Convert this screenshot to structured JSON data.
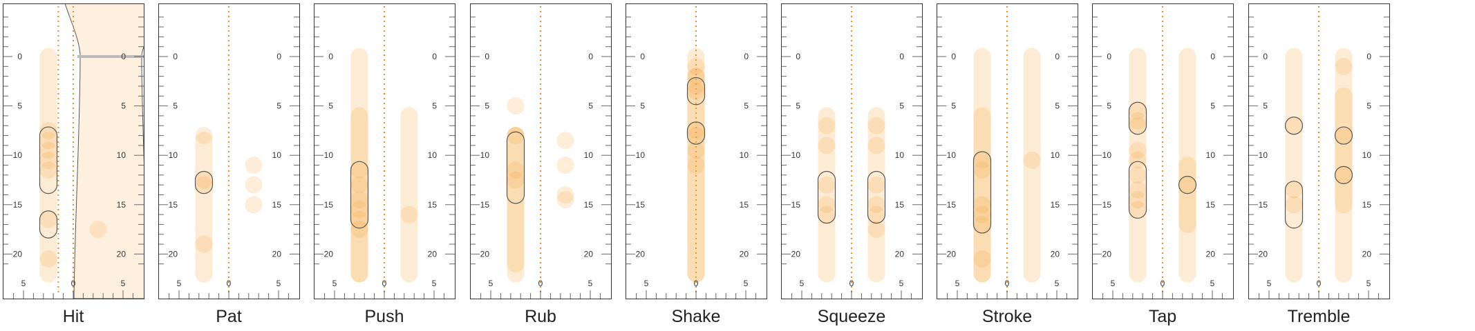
{
  "chart_data": {
    "type": "scatter",
    "title": "",
    "y_ticks": [
      "0",
      "5",
      "10",
      "15",
      "20"
    ],
    "ylim": [
      -5.5,
      24.5
    ],
    "x_ticks": [
      "5",
      "0",
      "5"
    ],
    "xlim": [
      -6.5,
      6.5
    ],
    "reference_line_x": 0,
    "colors": {
      "fill": "#f5a742",
      "guide": "#ee8a2a",
      "outline": "#555555",
      "ruler": "#666666"
    },
    "panels": [
      {
        "name": "Hit",
        "bars": [
          {
            "x": -2.5,
            "y": [
              0,
              22
            ]
          }
        ],
        "dots": [
          {
            "x": -2.5,
            "y": 7.5
          },
          {
            "x": -2.5,
            "y": 8.5
          },
          {
            "x": -2.5,
            "y": 9.5
          },
          {
            "x": -2.5,
            "y": 10.5
          },
          {
            "x": -2.5,
            "y": 11.5
          },
          {
            "x": -2.5,
            "y": 16.5
          },
          {
            "x": -2.5,
            "y": 20.5
          },
          {
            "x": 2.5,
            "y": 17.5
          }
        ],
        "outlines": [
          {
            "x": -2.5,
            "y": [
              8,
              13
            ]
          },
          {
            "x": -2.5,
            "y": [
              16.5,
              17.5
            ]
          }
        ],
        "silhouette": true
      },
      {
        "name": "Pat",
        "bars": [
          {
            "x": -2.5,
            "y": [
              8.5,
              22
            ]
          }
        ],
        "dots": [
          {
            "x": -2.5,
            "y": 8
          },
          {
            "x": -2.5,
            "y": 12.5
          },
          {
            "x": -2.5,
            "y": 13
          },
          {
            "x": -2.5,
            "y": 19
          },
          {
            "x": 2.5,
            "y": 11
          },
          {
            "x": 2.5,
            "y": 13
          },
          {
            "x": 2.5,
            "y": 15
          }
        ],
        "outlines": [
          {
            "x": -2.5,
            "y": [
              12.5,
              13
            ]
          }
        ]
      },
      {
        "name": "Push",
        "bars": [
          {
            "x": -2.5,
            "y": [
              0,
              22
            ]
          },
          {
            "x": -2.5,
            "y": [
              6,
              22
            ]
          },
          {
            "x": 2.5,
            "y": [
              6,
              22
            ]
          }
        ],
        "dots": [
          {
            "x": -2.5,
            "y": 11.5
          },
          {
            "x": -2.5,
            "y": 13
          },
          {
            "x": -2.5,
            "y": 14.5
          },
          {
            "x": -2.5,
            "y": 15.5
          },
          {
            "x": -2.5,
            "y": 16.5
          },
          {
            "x": -2.5,
            "y": 17.5
          },
          {
            "x": 2.5,
            "y": 16
          }
        ],
        "outlines": [
          {
            "x": -2.5,
            "y": [
              11.5,
              16.5
            ]
          }
        ]
      },
      {
        "name": "Rub",
        "bars": [
          {
            "x": -2.5,
            "y": [
              8,
              21
            ]
          },
          {
            "x": -2.5,
            "y": [
              8,
              22
            ]
          }
        ],
        "dots": [
          {
            "x": -2.5,
            "y": 5
          },
          {
            "x": -2.5,
            "y": 8
          },
          {
            "x": -2.5,
            "y": 11.5
          },
          {
            "x": -2.5,
            "y": 12.5
          },
          {
            "x": 2.5,
            "y": 8.5
          },
          {
            "x": 2.5,
            "y": 11
          },
          {
            "x": 2.5,
            "y": 14
          },
          {
            "x": 2.5,
            "y": 14.5
          }
        ],
        "outlines": [
          {
            "x": -2.5,
            "y": [
              8.5,
              14
            ]
          }
        ]
      },
      {
        "name": "Shake",
        "bars": [
          {
            "x": 0,
            "y": [
              0,
              22
            ]
          },
          {
            "x": 0,
            "y": [
              2,
              22
            ]
          }
        ],
        "dots": [
          {
            "x": 0,
            "y": 1
          },
          {
            "x": 0,
            "y": 2
          },
          {
            "x": 0,
            "y": 3
          },
          {
            "x": 0,
            "y": 3.5
          },
          {
            "x": 0,
            "y": 7.5
          },
          {
            "x": 0,
            "y": 8
          },
          {
            "x": 0,
            "y": 9.5
          },
          {
            "x": 0,
            "y": 11
          }
        ],
        "outlines": [
          {
            "x": 0,
            "y": [
              3,
              4
            ]
          },
          {
            "x": 0,
            "y": [
              7.5,
              8
            ]
          }
        ]
      },
      {
        "name": "Squeeze",
        "bars": [
          {
            "x": -2.5,
            "y": [
              6,
              22
            ]
          },
          {
            "x": 2.5,
            "y": [
              6,
              22
            ]
          }
        ],
        "dots": [
          {
            "x": -2.5,
            "y": 7
          },
          {
            "x": -2.5,
            "y": 9
          },
          {
            "x": -2.5,
            "y": 13
          },
          {
            "x": -2.5,
            "y": 15
          },
          {
            "x": -2.5,
            "y": 16
          },
          {
            "x": 2.5,
            "y": 7
          },
          {
            "x": 2.5,
            "y": 9
          },
          {
            "x": 2.5,
            "y": 13
          },
          {
            "x": 2.5,
            "y": 15
          },
          {
            "x": 2.5,
            "y": 16
          },
          {
            "x": 2.5,
            "y": 17.5
          }
        ],
        "outlines": [
          {
            "x": -2.5,
            "y": [
              12.5,
              16
            ]
          },
          {
            "x": 2.5,
            "y": [
              12.5,
              16
            ]
          }
        ]
      },
      {
        "name": "Stroke",
        "bars": [
          {
            "x": -2.5,
            "y": [
              0,
              22
            ]
          },
          {
            "x": -2.5,
            "y": [
              6,
              22
            ]
          },
          {
            "x": 2.5,
            "y": [
              0,
              22
            ]
          }
        ],
        "dots": [
          {
            "x": -2.5,
            "y": 10.5
          },
          {
            "x": -2.5,
            "y": 11.5
          },
          {
            "x": -2.5,
            "y": 15
          },
          {
            "x": -2.5,
            "y": 16
          },
          {
            "x": -2.5,
            "y": 17
          },
          {
            "x": -2.5,
            "y": 20.5
          },
          {
            "x": 2.5,
            "y": 10.5
          }
        ],
        "outlines": [
          {
            "x": -2.5,
            "y": [
              10.5,
              17
            ]
          }
        ]
      },
      {
        "name": "Tap",
        "bars": [
          {
            "x": -2.5,
            "y": [
              0,
              22
            ]
          },
          {
            "x": 2.5,
            "y": [
              0,
              22
            ]
          },
          {
            "x": 2.5,
            "y": [
              11,
              17
            ]
          }
        ],
        "dots": [
          {
            "x": -2.5,
            "y": 5.5
          },
          {
            "x": -2.5,
            "y": 6.5
          },
          {
            "x": -2.5,
            "y": 7
          },
          {
            "x": -2.5,
            "y": 9.5
          },
          {
            "x": -2.5,
            "y": 10.5
          },
          {
            "x": -2.5,
            "y": 12
          },
          {
            "x": -2.5,
            "y": 13.5
          },
          {
            "x": -2.5,
            "y": 14.5
          },
          {
            "x": -2.5,
            "y": 15.5
          },
          {
            "x": 2.5,
            "y": 13
          }
        ],
        "outlines": [
          {
            "x": -2.5,
            "y": [
              5.5,
              7
            ]
          },
          {
            "x": -2.5,
            "y": [
              11.5,
              15.5
            ]
          },
          {
            "x": 2.5,
            "y": [
              13,
              13
            ]
          }
        ]
      },
      {
        "name": "Tremble",
        "bars": [
          {
            "x": -2.5,
            "y": [
              0,
              22
            ]
          },
          {
            "x": 2.5,
            "y": [
              0,
              22
            ]
          },
          {
            "x": 2.5,
            "y": [
              4,
              15
            ]
          }
        ],
        "dots": [
          {
            "x": -2.5,
            "y": 7
          },
          {
            "x": -2.5,
            "y": 13.5
          },
          {
            "x": -2.5,
            "y": 15
          },
          {
            "x": 2.5,
            "y": 1
          },
          {
            "x": 2.5,
            "y": 8
          },
          {
            "x": 2.5,
            "y": 12
          }
        ],
        "outlines": [
          {
            "x": -2.5,
            "y": [
              7,
              7
            ]
          },
          {
            "x": -2.5,
            "y": [
              13.5,
              16.5
            ]
          },
          {
            "x": 2.5,
            "y": [
              8,
              8
            ]
          },
          {
            "x": 2.5,
            "y": [
              12,
              12
            ]
          }
        ]
      }
    ]
  }
}
